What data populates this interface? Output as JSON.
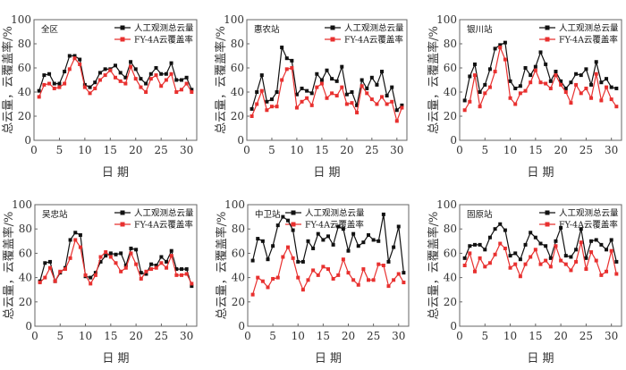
{
  "chart_data": [
    {
      "type": "line",
      "title": "全区",
      "xlabel": "日 期",
      "ylabel": "总云量，云覆盖率/%",
      "xlim": [
        0,
        32
      ],
      "ylim": [
        0,
        100
      ],
      "xticks": [
        0,
        5,
        10,
        15,
        20,
        25,
        30
      ],
      "yticks": [
        0,
        20,
        40,
        60,
        80,
        100
      ],
      "legend_position": "top-right",
      "series": [
        {
          "name": "人工观测总云量",
          "color": "#111111",
          "values": [
            41,
            54,
            55,
            47,
            47,
            57,
            70,
            70,
            67,
            46,
            44,
            48,
            56,
            59,
            59,
            62,
            56,
            52,
            65,
            59,
            51,
            47,
            55,
            60,
            55,
            55,
            64,
            50,
            50,
            52,
            42
          ]
        },
        {
          "name": "FY-4A云覆盖率",
          "color": "#e8302f",
          "values": [
            36,
            46,
            47,
            43,
            44,
            47,
            59,
            68,
            63,
            44,
            39,
            43,
            50,
            54,
            58,
            52,
            49,
            47,
            61,
            51,
            44,
            40,
            51,
            54,
            45,
            50,
            55,
            40,
            42,
            47,
            40
          ]
        }
      ]
    },
    {
      "type": "line",
      "title": "惠农站",
      "xlabel": "日 期",
      "ylabel": "总云量，云覆盖率/%",
      "xlim": [
        0,
        32
      ],
      "ylim": [
        0,
        100
      ],
      "xticks": [
        0,
        5,
        10,
        15,
        20,
        25,
        30
      ],
      "yticks": [
        0,
        20,
        40,
        60,
        80,
        100
      ],
      "legend_position": "top-right",
      "series": [
        {
          "name": "人工观测总云量",
          "color": "#111111",
          "values": [
            26,
            40,
            54,
            32,
            34,
            40,
            77,
            68,
            66,
            38,
            43,
            41,
            39,
            55,
            50,
            58,
            51,
            49,
            61,
            38,
            40,
            29,
            50,
            43,
            52,
            46,
            57,
            37,
            44,
            25,
            29
          ]
        },
        {
          "name": "FY-4A云覆盖率",
          "color": "#e8302f",
          "values": [
            20,
            30,
            41,
            25,
            28,
            28,
            50,
            59,
            60,
            27,
            32,
            35,
            29,
            44,
            47,
            35,
            39,
            37,
            44,
            30,
            31,
            23,
            45,
            39,
            34,
            30,
            36,
            30,
            32,
            16,
            27
          ]
        }
      ]
    },
    {
      "type": "line",
      "title": "银川站",
      "xlabel": "日 期",
      "ylabel": "总云量，云覆盖率/%",
      "xlim": [
        0,
        32
      ],
      "ylim": [
        0,
        100
      ],
      "xticks": [
        0,
        5,
        10,
        15,
        20,
        25,
        30
      ],
      "yticks": [
        0,
        20,
        40,
        60,
        80,
        100
      ],
      "legend_position": "top-right",
      "series": [
        {
          "name": "人工观测总云量",
          "color": "#111111",
          "values": [
            33,
            53,
            63,
            40,
            46,
            59,
            76,
            79,
            81,
            49,
            43,
            45,
            60,
            54,
            61,
            73,
            63,
            49,
            57,
            49,
            43,
            48,
            55,
            54,
            59,
            46,
            65,
            48,
            51,
            44,
            43
          ]
        },
        {
          "name": "FY-4A云覆盖率",
          "color": "#e8302f",
          "values": [
            25,
            32,
            54,
            28,
            39,
            44,
            57,
            77,
            67,
            35,
            30,
            39,
            41,
            48,
            58,
            48,
            47,
            43,
            54,
            46,
            40,
            31,
            46,
            39,
            43,
            35,
            55,
            33,
            44,
            34,
            28
          ]
        }
      ]
    },
    {
      "type": "line",
      "title": "吴忠站",
      "xlabel": "日 期",
      "ylabel": "总云量，云覆盖率/%",
      "xlim": [
        0,
        32
      ],
      "ylim": [
        0,
        100
      ],
      "xticks": [
        0,
        5,
        10,
        15,
        20,
        25,
        30
      ],
      "yticks": [
        0,
        20,
        40,
        60,
        80,
        100
      ],
      "legend_position": "top-right",
      "series": [
        {
          "name": "人工观测总云量",
          "color": "#111111",
          "values": [
            37,
            52,
            53,
            37,
            44,
            48,
            71,
            77,
            75,
            41,
            40,
            44,
            53,
            58,
            60,
            59,
            60,
            50,
            64,
            63,
            44,
            43,
            51,
            50,
            57,
            53,
            62,
            47,
            47,
            47,
            33
          ]
        },
        {
          "name": "FY-4A云覆盖率",
          "color": "#e8302f",
          "values": [
            36,
            40,
            48,
            37,
            45,
            47,
            56,
            71,
            65,
            42,
            35,
            42,
            57,
            61,
            57,
            52,
            45,
            48,
            60,
            51,
            39,
            45,
            47,
            48,
            52,
            48,
            58,
            42,
            42,
            43,
            35
          ]
        }
      ]
    },
    {
      "type": "line",
      "title": "中卫站",
      "xlabel": "日 期",
      "ylabel": "总云量，云覆盖率/%",
      "xlim": [
        0,
        32
      ],
      "ylim": [
        0,
        100
      ],
      "xticks": [
        0,
        5,
        10,
        15,
        20,
        25,
        30
      ],
      "yticks": [
        0,
        20,
        40,
        60,
        80,
        100
      ],
      "legend_position": "top",
      "series": [
        {
          "name": "人工观测总云量",
          "color": "#111111",
          "values": [
            54,
            72,
            70,
            55,
            66,
            83,
            90,
            87,
            79,
            53,
            53,
            70,
            64,
            76,
            71,
            74,
            67,
            82,
            80,
            62,
            76,
            66,
            69,
            75,
            71,
            70,
            92,
            53,
            65,
            82,
            44
          ]
        },
        {
          "name": "FY-4A云覆盖率",
          "color": "#e8302f",
          "values": [
            26,
            40,
            37,
            32,
            39,
            40,
            57,
            65,
            56,
            40,
            30,
            38,
            46,
            42,
            49,
            47,
            39,
            42,
            55,
            44,
            38,
            34,
            47,
            38,
            38,
            51,
            50,
            33,
            38,
            43,
            36
          ]
        }
      ]
    },
    {
      "type": "line",
      "title": "固原站",
      "xlabel": "日 期",
      "ylabel": "总云量，云覆盖率/%",
      "xlim": [
        0,
        32
      ],
      "ylim": [
        0,
        100
      ],
      "xticks": [
        0,
        5,
        10,
        15,
        20,
        25,
        30
      ],
      "yticks": [
        0,
        20,
        40,
        60,
        80,
        100
      ],
      "legend_position": "top-right",
      "series": [
        {
          "name": "人工观测总云量",
          "color": "#111111",
          "values": [
            56,
            66,
            67,
            67,
            63,
            73,
            80,
            84,
            79,
            58,
            60,
            55,
            67,
            77,
            73,
            68,
            66,
            56,
            70,
            81,
            58,
            57,
            63,
            80,
            56,
            70,
            71,
            67,
            63,
            71,
            53
          ]
        },
        {
          "name": "FY-4A云覆盖率",
          "color": "#e8302f",
          "values": [
            50,
            60,
            45,
            56,
            49,
            52,
            59,
            68,
            64,
            48,
            51,
            41,
            51,
            57,
            63,
            51,
            54,
            49,
            66,
            54,
            51,
            46,
            53,
            69,
            47,
            61,
            54,
            42,
            45,
            62,
            43
          ]
        }
      ]
    }
  ]
}
